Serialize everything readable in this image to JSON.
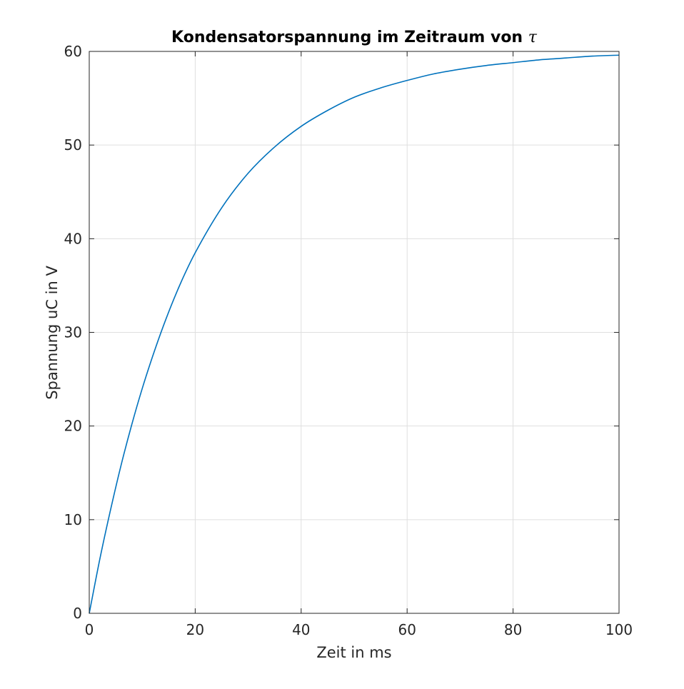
{
  "chart_data": {
    "type": "line",
    "title_main": "Kondensatorspannung im Zeitraum von ",
    "title_symbol": "τ",
    "xlabel": "Zeit in ms",
    "ylabel": "Spannung uC in V",
    "xlim": [
      0,
      100
    ],
    "ylim": [
      0,
      60
    ],
    "xticks": [
      "0",
      "20",
      "40",
      "60",
      "80",
      "100"
    ],
    "yticks": [
      "0",
      "10",
      "20",
      "30",
      "40",
      "50",
      "60"
    ],
    "grid": true,
    "legend": "none",
    "line_color": "#0072bd",
    "series": [
      {
        "x": [
          0,
          2,
          4,
          6,
          8,
          10,
          12,
          14,
          16,
          18,
          20,
          25,
          30,
          35,
          40,
          45,
          50,
          55,
          60,
          65,
          70,
          75,
          80,
          85,
          90,
          95,
          100
        ],
        "values": [
          0,
          5.8,
          11.0,
          15.8,
          20.1,
          24.0,
          27.5,
          30.7,
          33.6,
          36.2,
          38.5,
          43.3,
          47.0,
          49.8,
          52.0,
          53.7,
          55.1,
          56.1,
          56.9,
          57.6,
          58.1,
          58.5,
          58.8,
          59.1,
          59.3,
          59.5,
          59.6
        ]
      }
    ]
  }
}
